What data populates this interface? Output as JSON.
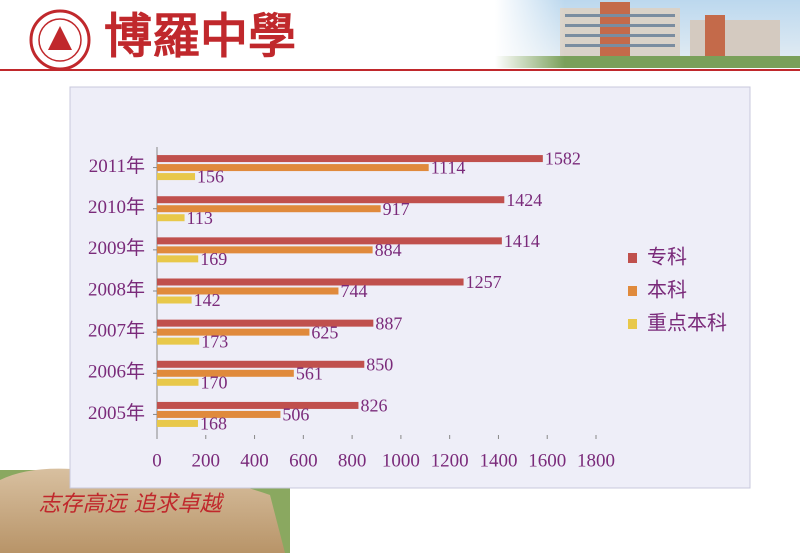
{
  "header": {
    "title": "博羅中學"
  },
  "motto": "志存高远 追求卓越",
  "chart_data": {
    "type": "hbar",
    "categories": [
      "2005年",
      "2006年",
      "2007年",
      "2008年",
      "2009年",
      "2010年",
      "2011年"
    ],
    "series": [
      {
        "name": "专科",
        "color": "#c0504d",
        "values": [
          826,
          850,
          887,
          1257,
          1414,
          1424,
          1582
        ]
      },
      {
        "name": "本科",
        "color": "#e08a3c",
        "values": [
          506,
          561,
          625,
          744,
          884,
          917,
          1114
        ]
      },
      {
        "name": "重点本科",
        "color": "#e8c84a",
        "values": [
          168,
          170,
          173,
          142,
          169,
          113,
          156
        ]
      }
    ],
    "xlim": [
      0,
      1800
    ],
    "xticks": [
      0,
      200,
      400,
      600,
      800,
      1000,
      1200,
      1400,
      1600,
      1800
    ],
    "legend": "right",
    "grid": false
  }
}
